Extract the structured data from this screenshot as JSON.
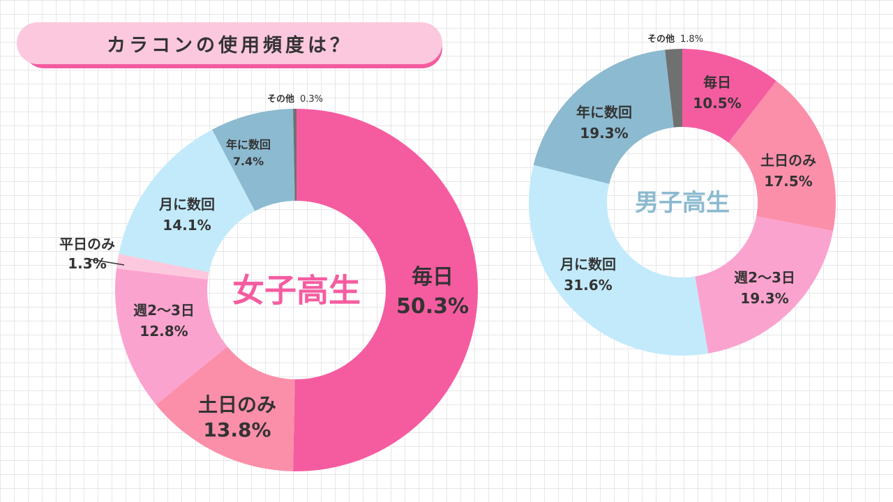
{
  "title": "カラコンの使用頻度は？",
  "colors": {
    "mainichi": "#f55ca0",
    "donichi": "#fb8faa",
    "shu": "#fba3cf",
    "heijitsu": "#fcc8de",
    "tsuki": "#c2eafa",
    "nen": "#8cbad0",
    "sonota": "#707070",
    "girls_center": "#f55ca0",
    "boys_center": "#8cbad0"
  },
  "chart_data": [
    {
      "type": "pie",
      "center_label": "女子高生",
      "slices": [
        {
          "label": "毎日",
          "value": 50.3,
          "value_text": "50.3%",
          "color_key": "mainichi"
        },
        {
          "label": "土日のみ",
          "value": 13.8,
          "value_text": "13.8%",
          "color_key": "donichi"
        },
        {
          "label": "週2〜3日",
          "value": 12.8,
          "value_text": "12.8%",
          "color_key": "shu"
        },
        {
          "label": "平日のみ",
          "value": 1.3,
          "value_text": "1.3%",
          "color_key": "heijitsu"
        },
        {
          "label": "月に数回",
          "value": 14.1,
          "value_text": "14.1%",
          "color_key": "tsuki"
        },
        {
          "label": "年に数回",
          "value": 7.4,
          "value_text": "7.4%",
          "color_key": "nen"
        },
        {
          "label": "その他",
          "value": 0.3,
          "value_text": "0.3%",
          "color_key": "sonota"
        }
      ]
    },
    {
      "type": "pie",
      "center_label": "男子高生",
      "slices": [
        {
          "label": "毎日",
          "value": 10.5,
          "value_text": "10.5%",
          "color_key": "mainichi"
        },
        {
          "label": "土日のみ",
          "value": 17.5,
          "value_text": "17.5%",
          "color_key": "donichi"
        },
        {
          "label": "週2〜3日",
          "value": 19.3,
          "value_text": "19.3%",
          "color_key": "shu"
        },
        {
          "label": "月に数回",
          "value": 31.6,
          "value_text": "31.6%",
          "color_key": "tsuki"
        },
        {
          "label": "年に数回",
          "value": 19.3,
          "value_text": "19.3%",
          "color_key": "nen"
        },
        {
          "label": "その他",
          "value": 1.8,
          "value_text": "1.8%",
          "color_key": "sonota"
        }
      ]
    }
  ]
}
